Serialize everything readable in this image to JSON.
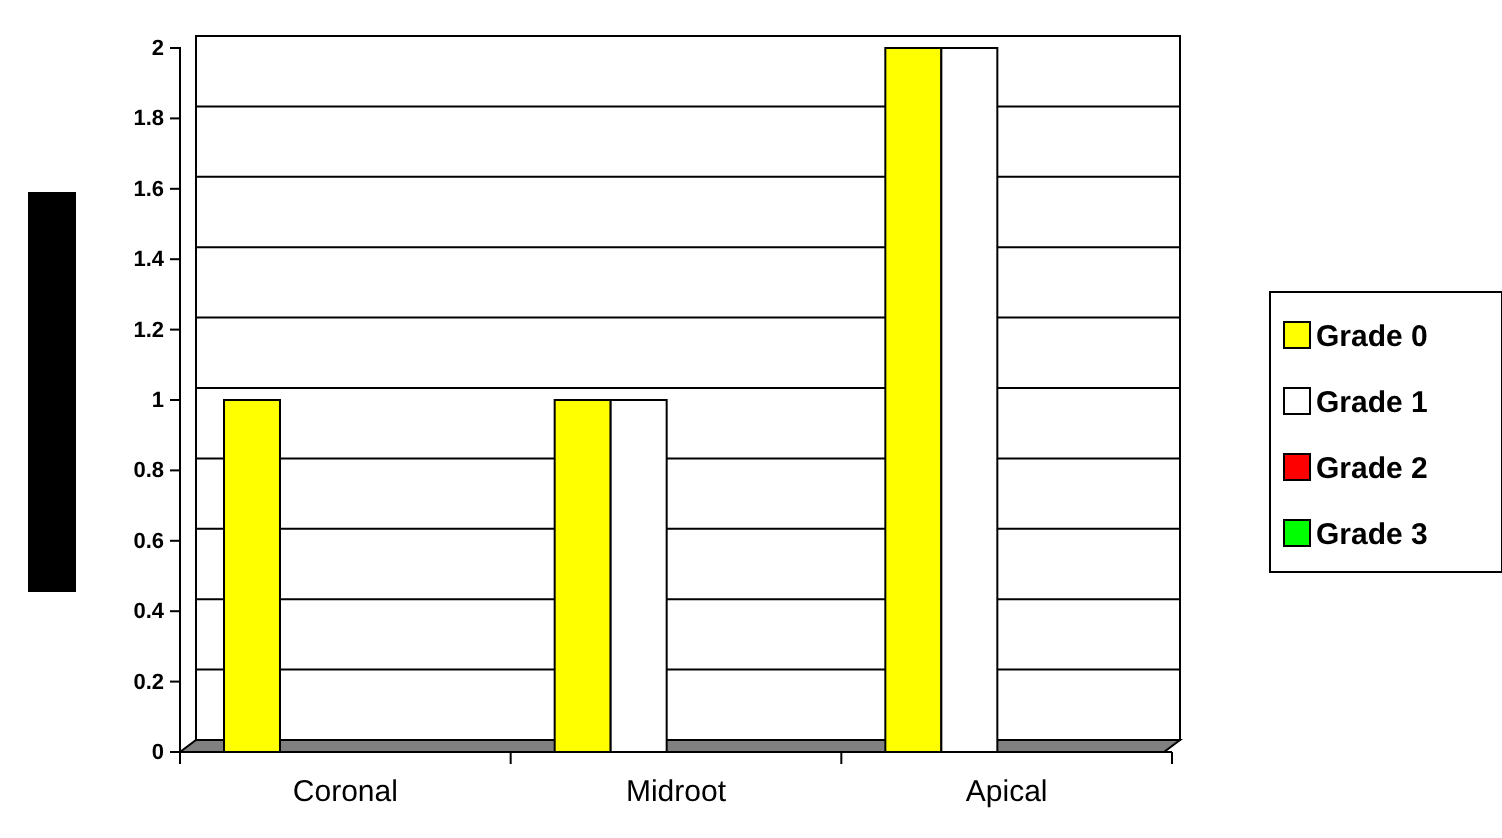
{
  "chart_data": {
    "type": "bar",
    "categories": [
      "Coronal",
      "Midroot",
      "Apical"
    ],
    "series": [
      {
        "name": "Grade 0",
        "color": "#ffff00",
        "values": [
          1,
          1,
          2
        ]
      },
      {
        "name": "Grade 1",
        "color": "#ffffff",
        "values": [
          0,
          1,
          2
        ]
      },
      {
        "name": "Grade 2",
        "color": "#ff0000",
        "values": [
          0,
          0,
          0
        ]
      },
      {
        "name": "Grade 3",
        "color": "#00ff00",
        "values": [
          0,
          0,
          0
        ]
      }
    ],
    "ylim": [
      0,
      2
    ],
    "yticks": [
      0,
      {
        "value": 0.2,
        "label": "0.2"
      },
      {
        "value": 0.4,
        "label": "0.4"
      },
      {
        "value": 0.6,
        "label": "0.6"
      },
      {
        "value": 0.8,
        "label": "0.8"
      },
      1,
      {
        "value": 1.2,
        "label": "1.2"
      },
      {
        "value": 1.4,
        "label": "1.4"
      },
      {
        "value": 1.6,
        "label": "1.6"
      },
      {
        "value": 1.8,
        "label": "1.8"
      },
      2
    ],
    "grid": "y",
    "legend": "right"
  }
}
